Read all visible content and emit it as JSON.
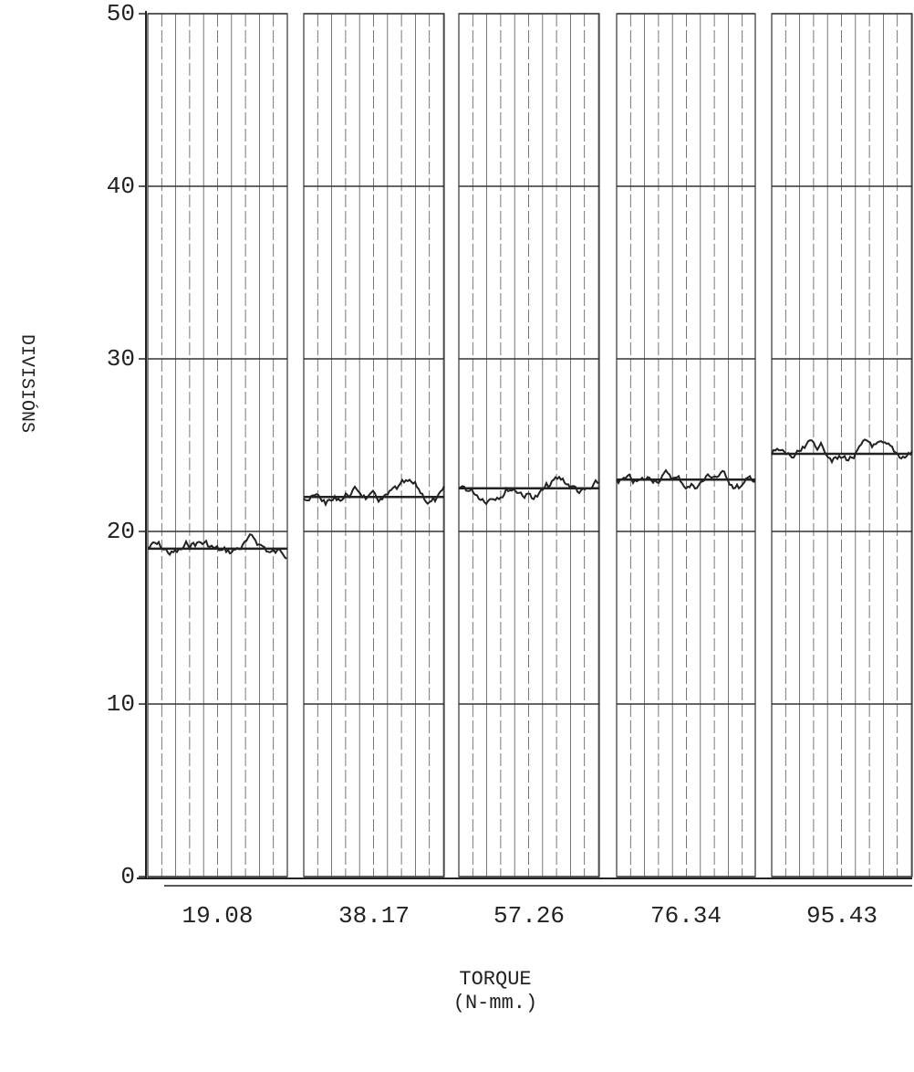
{
  "chart_data": {
    "type": "strip",
    "y_label": "DIVISIÓNS",
    "x_label": "TORQUE",
    "x_unit": "(N-mm.)",
    "categories": [
      "19.08",
      "38.17",
      "57.26",
      "76.34",
      "95.43"
    ],
    "values": [
      19,
      22,
      22.5,
      23,
      24.5
    ],
    "color": "#222222",
    "ylim": [
      0,
      50
    ],
    "yticks": [
      0,
      10,
      20,
      30,
      40,
      50
    ],
    "grid": true
  }
}
